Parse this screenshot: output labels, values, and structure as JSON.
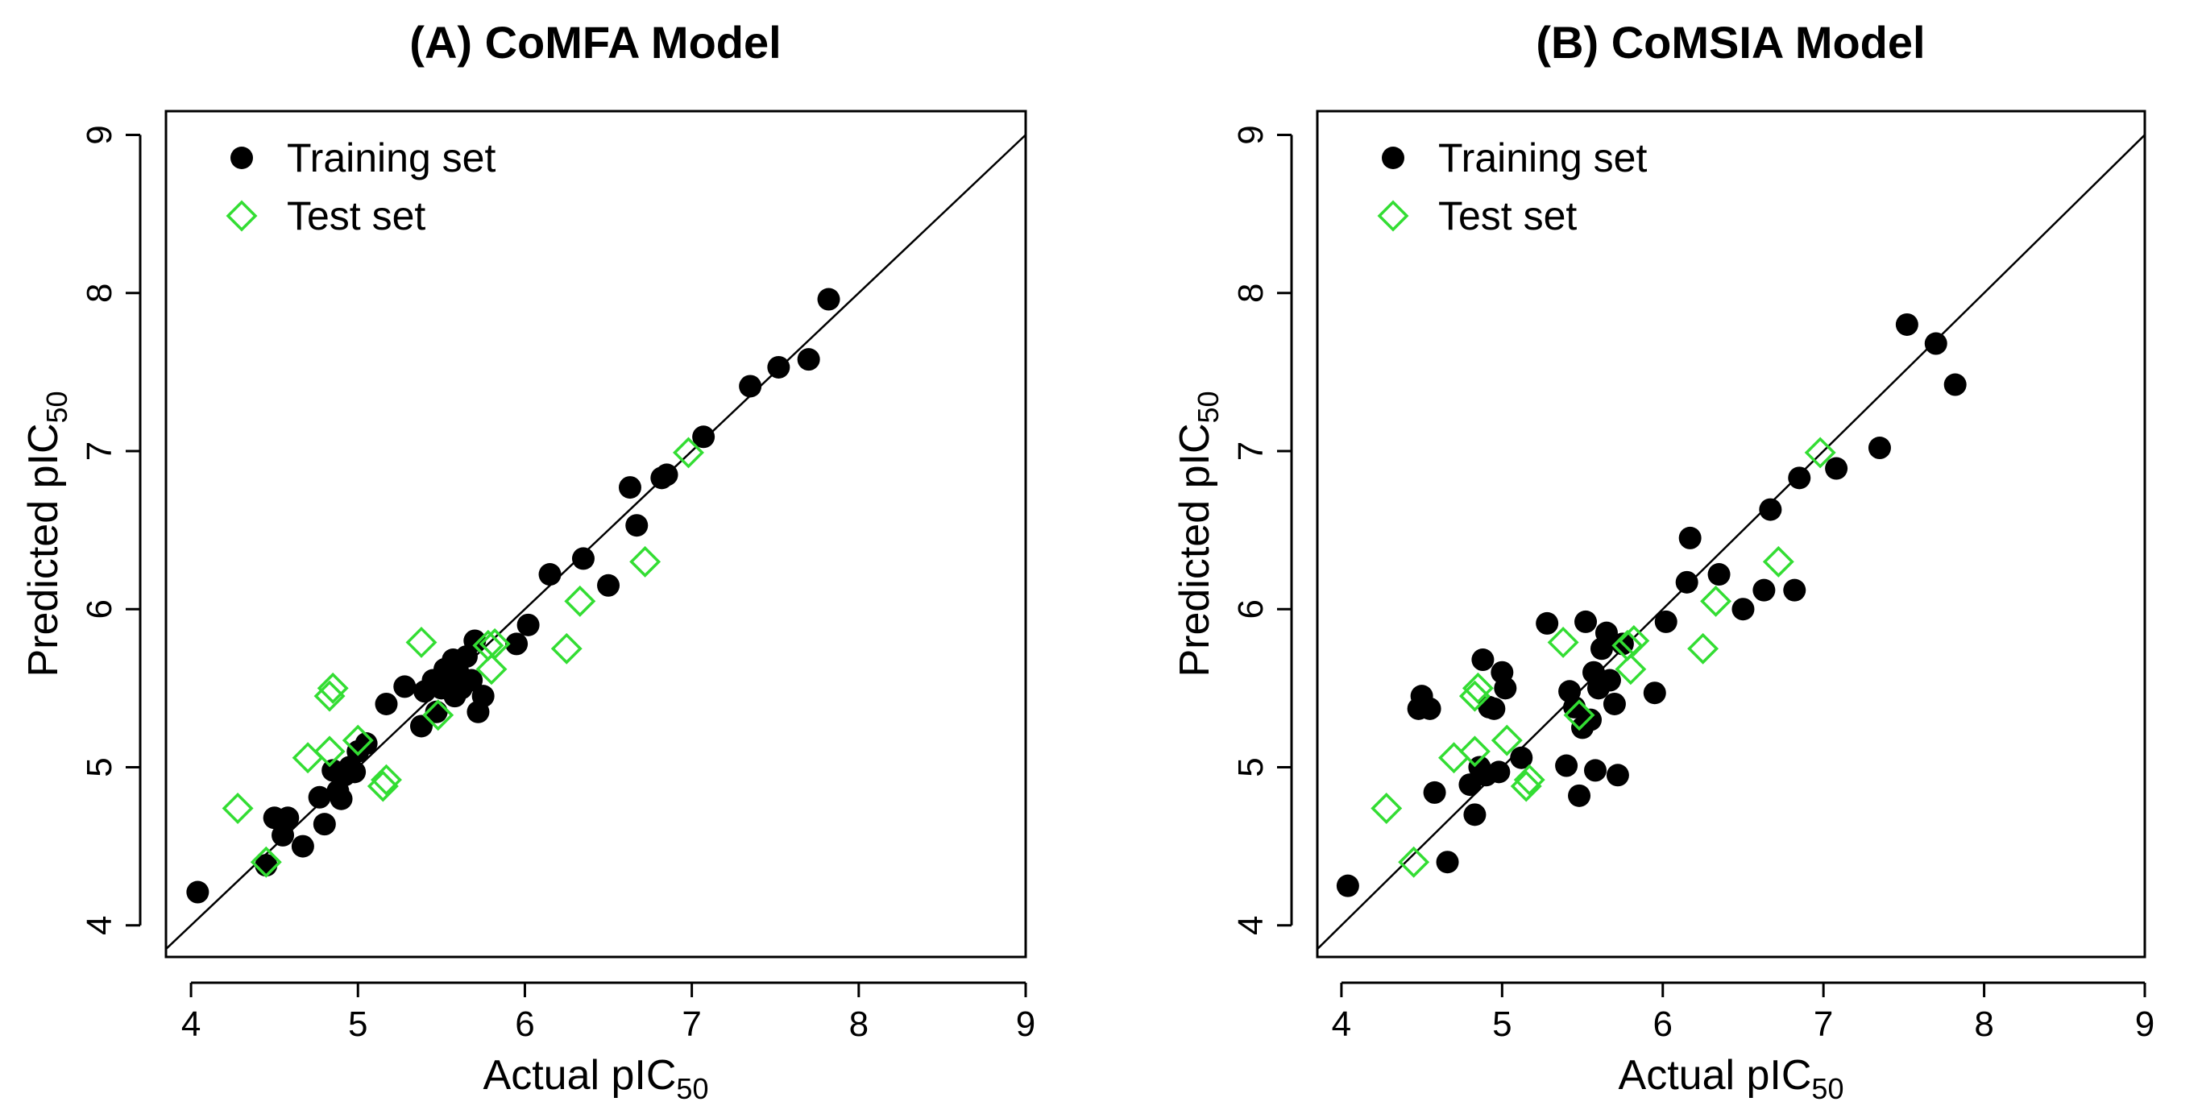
{
  "chart_data": [
    {
      "type": "scatter",
      "title": "(A) CoMFA Model",
      "xlabel": "Actual pIC",
      "xlabel_sub": "50",
      "ylabel": "Predicted pIC",
      "ylabel_sub": "50",
      "xlim": [
        3.85,
        9.0
      ],
      "ylim": [
        3.8,
        9.15
      ],
      "xticks": [
        "4",
        "5",
        "6",
        "7",
        "8",
        "9"
      ],
      "yticks": [
        "4",
        "5",
        "6",
        "7",
        "8",
        "9"
      ],
      "legend_position": "top-left",
      "reference_line": "y = x",
      "series": [
        {
          "name": "Training set",
          "marker": "filled-circle",
          "color": "#000000",
          "points": [
            [
              4.04,
              4.21
            ],
            [
              4.45,
              4.38
            ],
            [
              4.5,
              4.68
            ],
            [
              4.55,
              4.57
            ],
            [
              4.58,
              4.68
            ],
            [
              4.67,
              4.5
            ],
            [
              4.77,
              4.81
            ],
            [
              4.8,
              4.64
            ],
            [
              4.85,
              4.98
            ],
            [
              4.88,
              4.85
            ],
            [
              4.9,
              4.8
            ],
            [
              4.92,
              4.95
            ],
            [
              4.95,
              5.0
            ],
            [
              4.98,
              4.97
            ],
            [
              5.0,
              5.1
            ],
            [
              5.05,
              5.15
            ],
            [
              5.17,
              5.4
            ],
            [
              5.28,
              5.51
            ],
            [
              5.38,
              5.26
            ],
            [
              5.4,
              5.48
            ],
            [
              5.45,
              5.55
            ],
            [
              5.47,
              5.35
            ],
            [
              5.5,
              5.5
            ],
            [
              5.52,
              5.62
            ],
            [
              5.55,
              5.58
            ],
            [
              5.57,
              5.68
            ],
            [
              5.58,
              5.45
            ],
            [
              5.6,
              5.6
            ],
            [
              5.62,
              5.5
            ],
            [
              5.65,
              5.7
            ],
            [
              5.68,
              5.55
            ],
            [
              5.7,
              5.8
            ],
            [
              5.72,
              5.35
            ],
            [
              5.75,
              5.45
            ],
            [
              5.95,
              5.78
            ],
            [
              6.02,
              5.9
            ],
            [
              6.15,
              6.22
            ],
            [
              6.35,
              6.32
            ],
            [
              6.5,
              6.15
            ],
            [
              6.63,
              6.77
            ],
            [
              6.67,
              6.53
            ],
            [
              6.82,
              6.83
            ],
            [
              6.85,
              6.85
            ],
            [
              7.07,
              7.09
            ],
            [
              7.35,
              7.41
            ],
            [
              7.52,
              7.53
            ],
            [
              7.7,
              7.58
            ],
            [
              7.82,
              7.96
            ]
          ]
        },
        {
          "name": "Test set",
          "marker": "open-diamond",
          "color": "#33dd33",
          "points": [
            [
              4.28,
              4.74
            ],
            [
              4.45,
              4.4
            ],
            [
              4.7,
              5.06
            ],
            [
              4.83,
              5.1
            ],
            [
              4.83,
              5.45
            ],
            [
              4.85,
              5.5
            ],
            [
              5.0,
              5.17
            ],
            [
              5.15,
              4.88
            ],
            [
              5.17,
              4.92
            ],
            [
              5.38,
              5.79
            ],
            [
              5.48,
              5.33
            ],
            [
              5.78,
              5.77
            ],
            [
              5.8,
              5.62
            ],
            [
              5.82,
              5.78
            ],
            [
              6.25,
              5.75
            ],
            [
              6.33,
              6.05
            ],
            [
              6.72,
              6.3
            ],
            [
              6.98,
              6.99
            ]
          ]
        }
      ]
    },
    {
      "type": "scatter",
      "title": "(B) CoMSIA Model",
      "xlabel": "Actual pIC",
      "xlabel_sub": "50",
      "ylabel": "Predicted pIC",
      "ylabel_sub": "50",
      "xlim": [
        3.85,
        9.0
      ],
      "ylim": [
        3.8,
        9.15
      ],
      "xticks": [
        "4",
        "5",
        "6",
        "7",
        "8",
        "9"
      ],
      "yticks": [
        "4",
        "5",
        "6",
        "7",
        "8",
        "9"
      ],
      "legend_position": "top-left",
      "reference_line": "y = x",
      "series": [
        {
          "name": "Training set",
          "marker": "filled-circle",
          "color": "#000000",
          "points": [
            [
              4.04,
              4.25
            ],
            [
              4.48,
              5.37
            ],
            [
              4.5,
              5.45
            ],
            [
              4.55,
              5.37
            ],
            [
              4.58,
              4.84
            ],
            [
              4.66,
              4.4
            ],
            [
              4.8,
              4.89
            ],
            [
              4.83,
              4.7
            ],
            [
              4.86,
              5.0
            ],
            [
              4.88,
              5.68
            ],
            [
              4.9,
              4.95
            ],
            [
              4.92,
              5.38
            ],
            [
              4.95,
              5.37
            ],
            [
              4.98,
              4.97
            ],
            [
              5.0,
              5.6
            ],
            [
              5.02,
              5.5
            ],
            [
              5.12,
              5.06
            ],
            [
              5.28,
              5.91
            ],
            [
              5.4,
              5.01
            ],
            [
              5.42,
              5.48
            ],
            [
              5.45,
              5.38
            ],
            [
              5.48,
              4.82
            ],
            [
              5.5,
              5.25
            ],
            [
              5.52,
              5.92
            ],
            [
              5.55,
              5.3
            ],
            [
              5.57,
              5.6
            ],
            [
              5.58,
              4.98
            ],
            [
              5.6,
              5.5
            ],
            [
              5.62,
              5.75
            ],
            [
              5.65,
              5.85
            ],
            [
              5.67,
              5.55
            ],
            [
              5.7,
              5.4
            ],
            [
              5.72,
              4.95
            ],
            [
              5.75,
              5.78
            ],
            [
              5.95,
              5.47
            ],
            [
              6.02,
              5.92
            ],
            [
              6.15,
              6.17
            ],
            [
              6.17,
              6.45
            ],
            [
              6.35,
              6.22
            ],
            [
              6.5,
              6.0
            ],
            [
              6.63,
              6.12
            ],
            [
              6.67,
              6.63
            ],
            [
              6.82,
              6.12
            ],
            [
              6.85,
              6.83
            ],
            [
              7.08,
              6.89
            ],
            [
              7.35,
              7.02
            ],
            [
              7.52,
              7.8
            ],
            [
              7.7,
              7.68
            ],
            [
              7.82,
              7.42
            ]
          ]
        },
        {
          "name": "Test set",
          "marker": "open-diamond",
          "color": "#33dd33",
          "points": [
            [
              4.28,
              4.74
            ],
            [
              4.45,
              4.4
            ],
            [
              4.7,
              5.06
            ],
            [
              4.83,
              5.1
            ],
            [
              4.83,
              5.45
            ],
            [
              4.85,
              5.5
            ],
            [
              5.03,
              5.17
            ],
            [
              5.15,
              4.88
            ],
            [
              5.17,
              4.92
            ],
            [
              5.38,
              5.79
            ],
            [
              5.48,
              5.33
            ],
            [
              5.78,
              5.77
            ],
            [
              5.8,
              5.62
            ],
            [
              5.82,
              5.8
            ],
            [
              6.25,
              5.75
            ],
            [
              6.33,
              6.05
            ],
            [
              6.72,
              6.3
            ],
            [
              6.98,
              6.99
            ]
          ]
        }
      ]
    }
  ]
}
